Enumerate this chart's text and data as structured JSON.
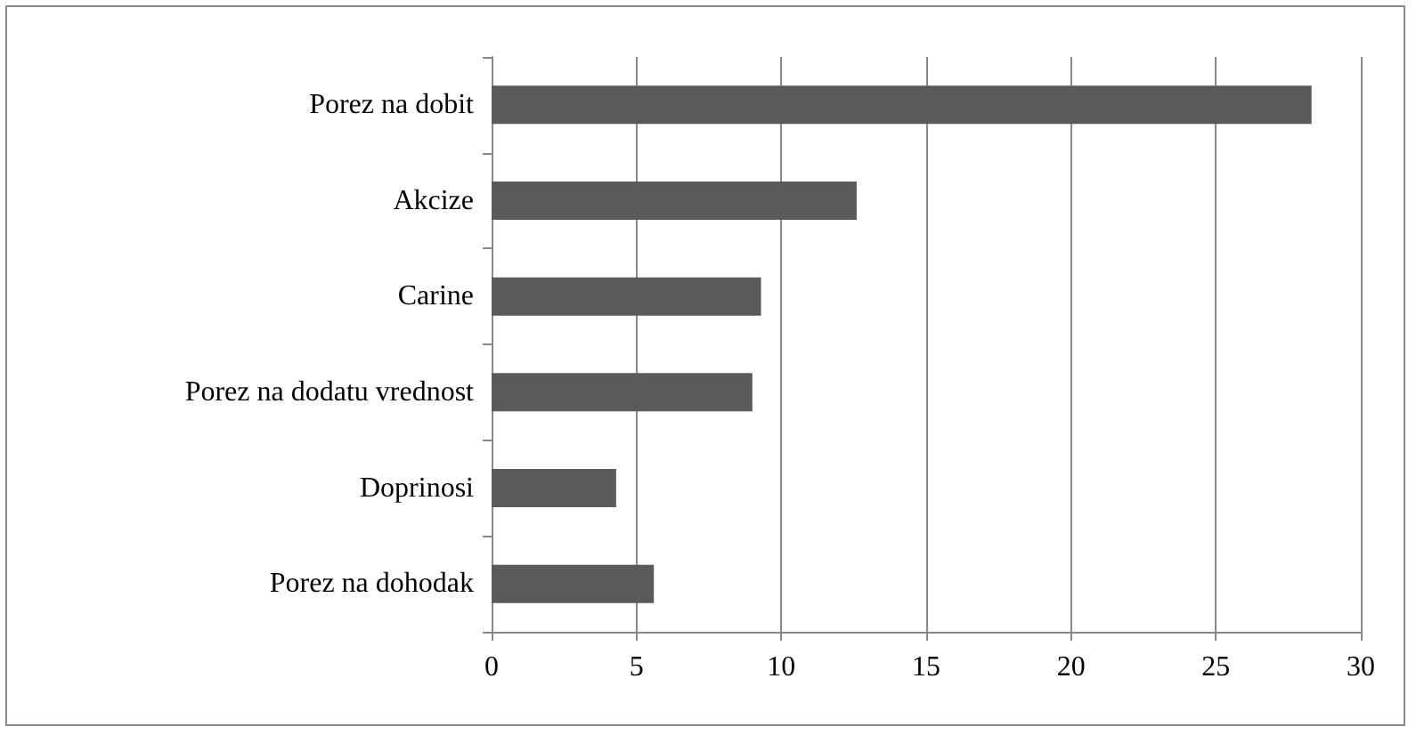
{
  "chart_data": {
    "type": "bar",
    "orientation": "horizontal",
    "categories": [
      "Porez na dobit",
      "Akcize",
      "Carine",
      "Porez na dodatu vrednost",
      "Doprinosi",
      "Porez na dohodak"
    ],
    "values": [
      28.3,
      12.6,
      9.3,
      9.0,
      4.3,
      5.6
    ],
    "color": "#5a5a5a",
    "xlim": [
      0,
      30
    ],
    "xticks": [
      0,
      5,
      10,
      15,
      20,
      25,
      30
    ],
    "grid": "x"
  }
}
